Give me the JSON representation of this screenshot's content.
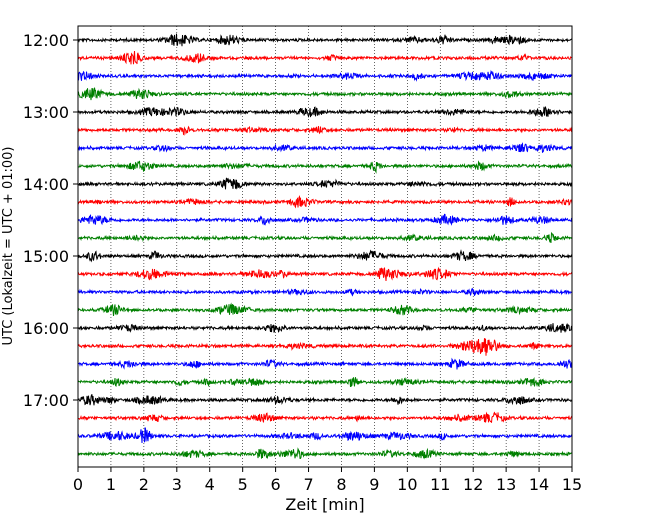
{
  "chart_data": {
    "type": "line",
    "title": "",
    "xlabel": "Zeit  [min]",
    "ylabel": "UTC (Lokalzeit = UTC + 01:00)",
    "xlim": [
      0,
      15
    ],
    "x_ticks": [
      "0",
      "1",
      "2",
      "3",
      "4",
      "5",
      "6",
      "7",
      "8",
      "9",
      "10",
      "11",
      "12",
      "13",
      "14",
      "15"
    ],
    "y_tick_labels": [
      "12:00",
      "13:00",
      "14:00",
      "15:00",
      "16:00",
      "17:00"
    ],
    "grid": "vertical dotted lines at each minute",
    "trace_interval_minutes": 15,
    "trace_start_times": [
      "12:00",
      "12:15",
      "12:30",
      "12:45",
      "13:00",
      "13:15",
      "13:30",
      "13:45",
      "14:00",
      "14:15",
      "14:30",
      "14:45",
      "15:00",
      "15:15",
      "15:30",
      "15:45",
      "16:00",
      "16:15",
      "16:30",
      "16:45",
      "17:00",
      "17:15",
      "17:30",
      "17:45"
    ],
    "trace_colors": [
      "#000000",
      "#ff0000",
      "#0000ff",
      "#008000"
    ],
    "series_description": "seismogram helicorder: 24 traces of continuous ground motion, one per 15-minute window, colors cycling black, red, blue, green"
  }
}
